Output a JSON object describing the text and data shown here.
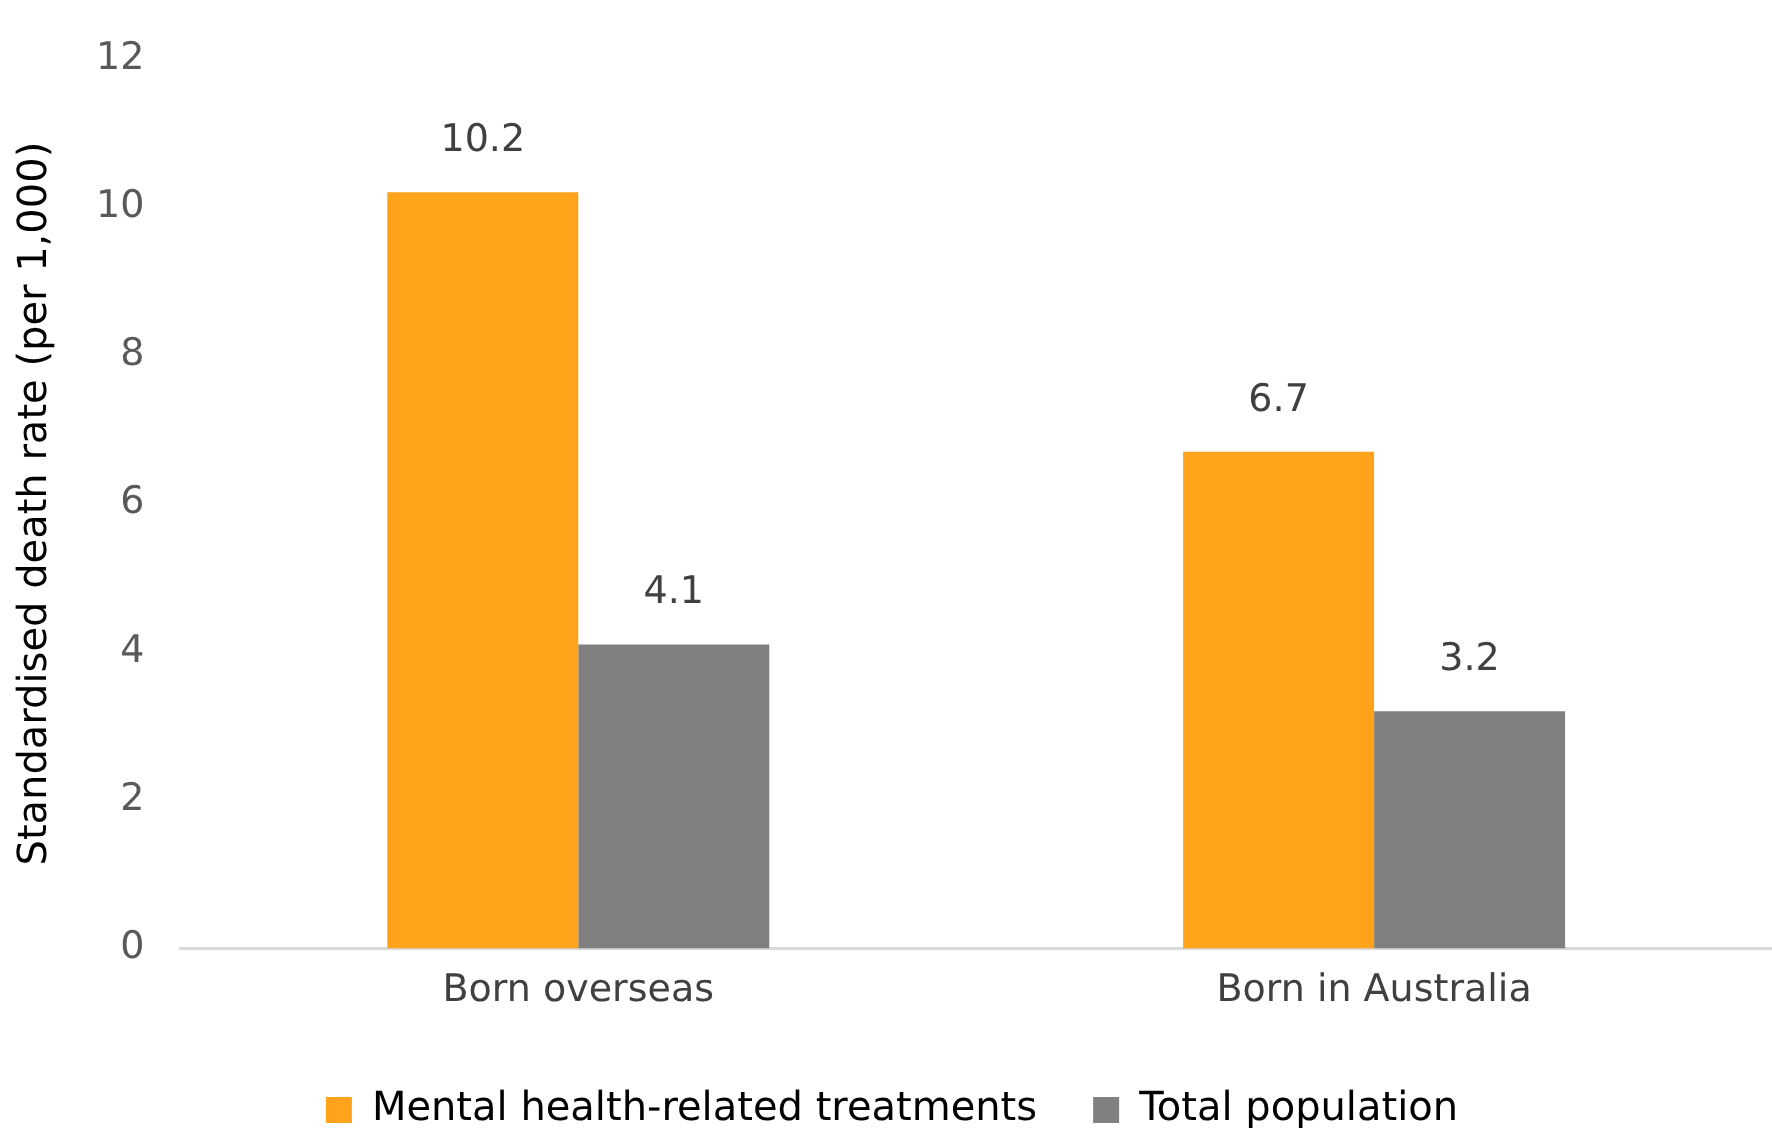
{
  "chart_data": {
    "type": "bar",
    "ylabel": "Standardised death rate (per 1,000)",
    "categories": [
      "Born overseas",
      "Born in Australia"
    ],
    "series": [
      {
        "name": "Mental health-related treatments",
        "color": "#ffa31a",
        "values": [
          10.2,
          6.7
        ]
      },
      {
        "name": "Total population",
        "color": "#808080",
        "values": [
          4.1,
          3.2
        ]
      }
    ],
    "ylim": [
      0,
      12
    ],
    "yticks": [
      0,
      2,
      4,
      6,
      8,
      10,
      12
    ],
    "grid": false,
    "legend": "bottom",
    "data_labels": true
  }
}
